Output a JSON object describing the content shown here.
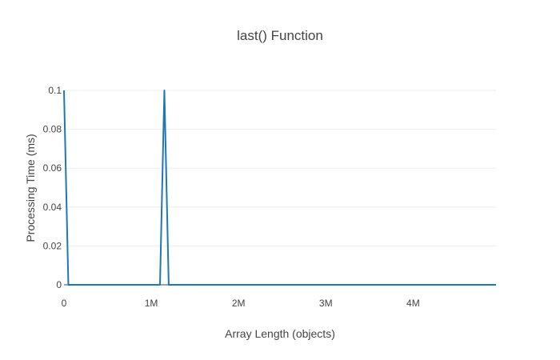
{
  "chart_data": {
    "type": "line",
    "title": "last() Function",
    "xlabel": "Array Length (objects)",
    "ylabel": "Processing Time (ms)",
    "xlim": [
      0,
      4950000
    ],
    "ylim": [
      0,
      0.1
    ],
    "x_ticks": [
      {
        "value": 0,
        "label": "0"
      },
      {
        "value": 1000000,
        "label": "1M"
      },
      {
        "value": 2000000,
        "label": "2M"
      },
      {
        "value": 3000000,
        "label": "3M"
      },
      {
        "value": 4000000,
        "label": "4M"
      }
    ],
    "y_ticks": [
      {
        "value": 0,
        "label": "0"
      },
      {
        "value": 0.02,
        "label": "0.02"
      },
      {
        "value": 0.04,
        "label": "0.04"
      },
      {
        "value": 0.06,
        "label": "0.06"
      },
      {
        "value": 0.08,
        "label": "0.08"
      },
      {
        "value": 0.1,
        "label": "0.1"
      }
    ],
    "grid": true,
    "legend": false,
    "series": [
      {
        "color": "#1f77b4",
        "x": [
          1,
          50000,
          1100000,
          1150000,
          1200000,
          4950000
        ],
        "y": [
          0.1,
          0,
          0,
          0.1,
          0,
          0
        ]
      }
    ]
  }
}
